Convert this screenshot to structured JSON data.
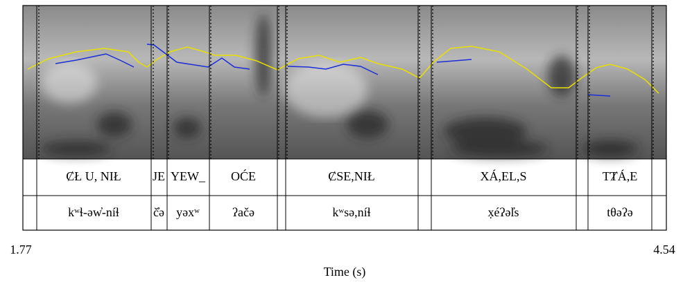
{
  "tiers": [
    {
      "intervals": [
        "ȻŁ U, NIŁ",
        "JE",
        "YEW_",
        "OĆE",
        "ȻSE,NIŁ",
        "XÁ,EL,S",
        "TȾÁ,E"
      ]
    },
    {
      "intervals": [
        "kʷɬ-əw̓-níɬ",
        "č̓ə",
        "yəxʷ",
        "ʔačə",
        "kʷsə,níɬ",
        "x̣éʔəl̓s",
        "tθəʔə"
      ]
    }
  ],
  "axis": {
    "start": "1.77",
    "end": "4.54",
    "label": "Time (s)"
  }
}
